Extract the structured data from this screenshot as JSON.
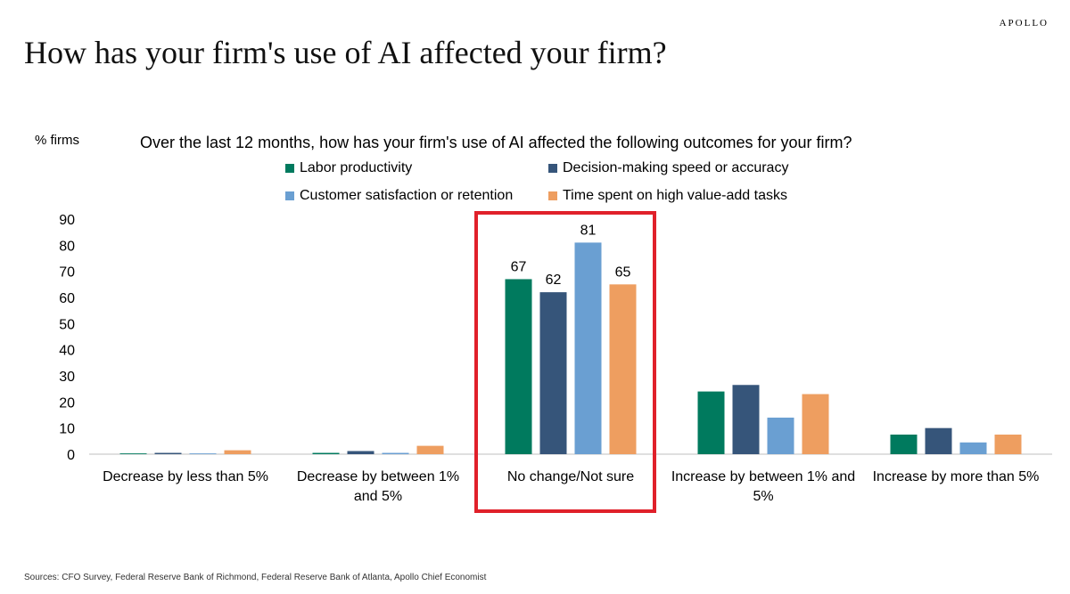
{
  "brand": "APOLLO",
  "title": "How has your firm's use of AI affected your firm?",
  "source": "Sources: CFO Survey, Federal Reserve Bank of Richmond, Federal Reserve Bank of Atlanta, Apollo Chief Economist",
  "colors": {
    "labor": "#007a5e",
    "decision": "#36557a",
    "customer": "#6a9fd2",
    "time": "#ee9e60",
    "highlight": "#e0202a"
  },
  "chart_data": {
    "type": "bar",
    "title": "Over the last 12 months, how has your firm's use of AI affected the following outcomes for your firm?",
    "ylabel": "% firms",
    "ylim": [
      0,
      90
    ],
    "yticks": [
      0,
      10,
      20,
      30,
      40,
      50,
      60,
      70,
      80,
      90
    ],
    "grid": false,
    "legend_position": "top",
    "categories": [
      [
        "Decrease by less than 5%"
      ],
      [
        "Decrease by between 1%",
        "and 5%"
      ],
      [
        "No change/Not sure"
      ],
      [
        "Increase by between 1% and",
        "5%"
      ],
      [
        "Increase by more than 5%"
      ]
    ],
    "series": [
      {
        "name": "Labor productivity",
        "color": "#007a5e",
        "values": [
          0.3,
          0.5,
          67,
          24,
          7.5
        ]
      },
      {
        "name": "Decision-making speed or accuracy",
        "color": "#36557a",
        "values": [
          0.5,
          1.2,
          62,
          26.5,
          10
        ]
      },
      {
        "name": "Customer satisfaction or retention",
        "color": "#6a9fd2",
        "values": [
          0.3,
          0.5,
          81,
          14,
          4.5
        ]
      },
      {
        "name": "Time spent on high value-add tasks",
        "color": "#ee9e60",
        "values": [
          1.5,
          3.2,
          65,
          23,
          7.5
        ]
      }
    ],
    "data_labels": {
      "category_index": 2,
      "labels": [
        "67",
        "62",
        "81",
        "65"
      ]
    },
    "highlighted_category": "No change/Not sure"
  }
}
